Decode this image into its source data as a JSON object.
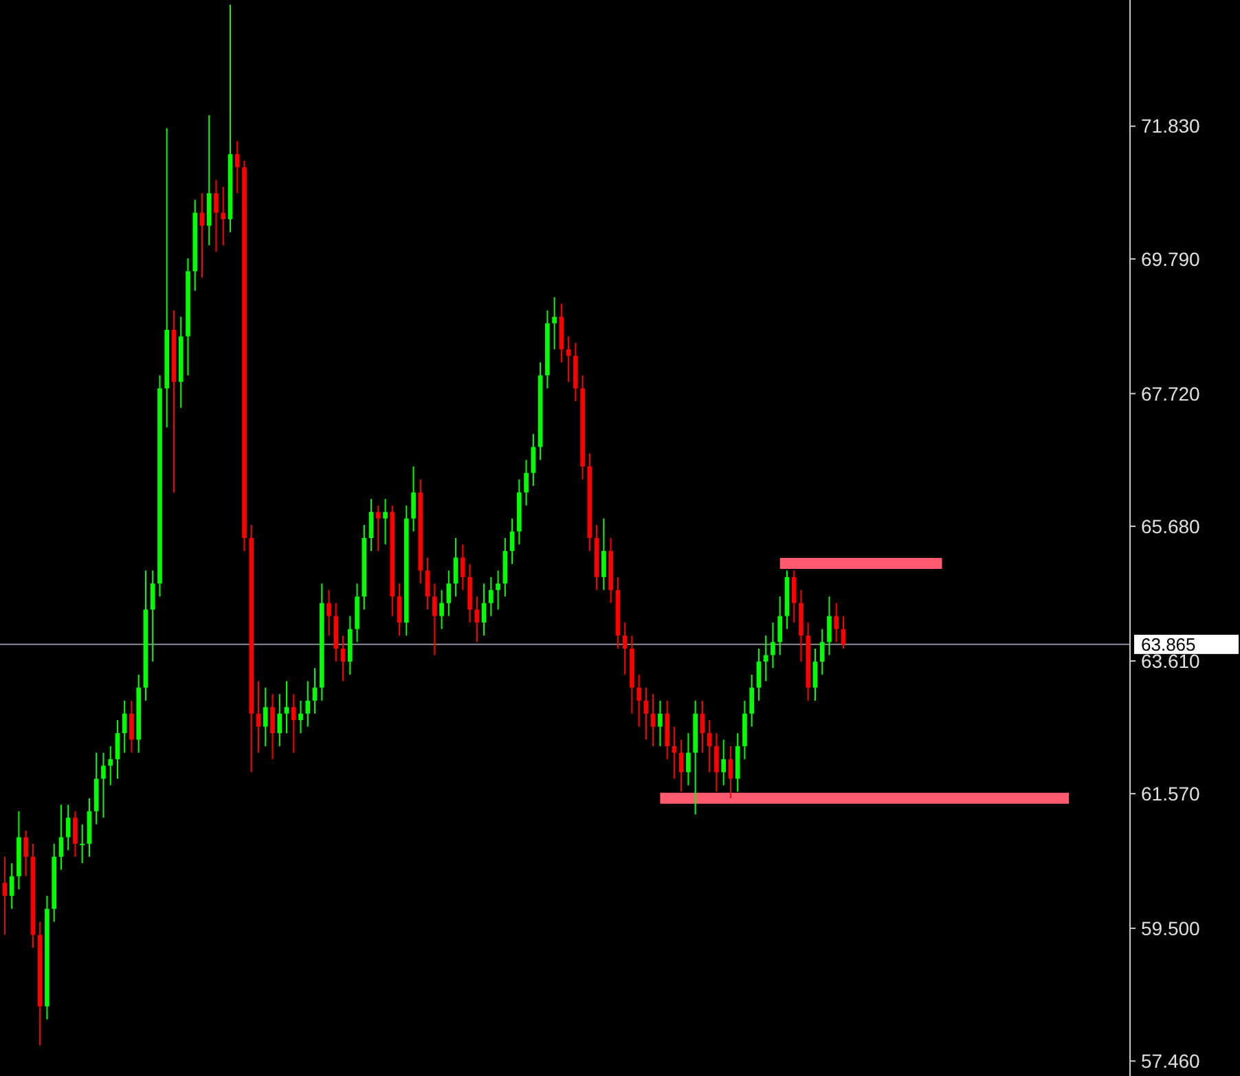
{
  "chart_data": {
    "type": "candlestick",
    "tick_labels": "y",
    "categories": [
      null,
      null,
      null,
      null,
      null,
      null,
      null,
      null,
      null,
      null,
      null,
      null,
      null,
      null,
      null,
      null,
      null,
      null,
      null,
      null,
      null,
      null,
      null,
      null,
      null,
      null,
      null,
      null,
      null,
      null,
      null,
      null,
      null,
      null,
      null,
      null,
      null,
      null,
      null,
      null,
      null,
      null,
      null,
      null,
      null,
      null,
      null,
      null,
      null,
      null,
      null,
      null,
      null,
      null,
      null,
      null,
      null,
      null,
      null,
      null,
      null,
      null,
      null,
      null,
      null,
      null,
      null,
      null,
      null,
      null,
      null,
      null,
      null,
      null,
      null,
      null,
      null,
      null,
      null,
      null,
      null,
      null,
      null,
      null,
      null,
      null,
      null,
      null,
      null,
      null,
      null,
      null,
      null,
      null,
      null,
      null,
      null,
      null,
      null,
      null,
      null,
      null,
      null,
      null,
      null,
      null,
      null,
      null,
      null,
      null,
      null,
      null,
      null,
      null,
      null,
      null,
      null,
      null,
      null,
      null,
      null,
      null,
      null,
      null,
      null,
      null,
      null,
      null,
      null,
      null,
      null,
      null,
      null,
      null,
      null,
      null,
      null,
      null,
      null,
      null,
      null,
      null,
      null,
      null,
      null,
      null,
      null,
      null,
      null,
      null,
      null,
      null,
      null,
      null,
      null,
      null,
      null,
      null,
      null,
      null
    ],
    "ohlc": [
      [
        60.2,
        60.6,
        59.4,
        60.0
      ],
      [
        60.0,
        60.5,
        59.8,
        60.3
      ],
      [
        60.3,
        61.3,
        60.1,
        60.9
      ],
      [
        60.9,
        61.0,
        60.3,
        60.6
      ],
      [
        60.6,
        60.8,
        59.2,
        59.4
      ],
      [
        59.4,
        59.6,
        57.7,
        58.3
      ],
      [
        58.3,
        60.0,
        58.1,
        59.8
      ],
      [
        59.8,
        60.8,
        59.6,
        60.6
      ],
      [
        60.6,
        61.4,
        60.4,
        60.9
      ],
      [
        60.9,
        61.4,
        60.7,
        61.2
      ],
      [
        61.2,
        61.3,
        60.6,
        60.8
      ],
      [
        60.8,
        61.1,
        60.5,
        60.8
      ],
      [
        60.8,
        61.5,
        60.6,
        61.3
      ],
      [
        61.3,
        62.2,
        61.1,
        61.8
      ],
      [
        61.8,
        62.2,
        61.2,
        62.0
      ],
      [
        62.0,
        62.3,
        61.7,
        62.1
      ],
      [
        62.1,
        62.7,
        61.8,
        62.5
      ],
      [
        62.5,
        63.0,
        62.2,
        62.8
      ],
      [
        62.8,
        63.0,
        62.2,
        62.4
      ],
      [
        62.4,
        63.4,
        62.2,
        63.2
      ],
      [
        63.2,
        65.0,
        63.0,
        64.4
      ],
      [
        64.4,
        65.0,
        63.6,
        64.8
      ],
      [
        64.8,
        68.0,
        64.6,
        67.8
      ],
      [
        67.8,
        71.8,
        67.2,
        68.7
      ],
      [
        68.7,
        69.0,
        66.2,
        67.9
      ],
      [
        67.9,
        68.9,
        67.5,
        68.6
      ],
      [
        68.6,
        69.8,
        68.0,
        69.6
      ],
      [
        69.6,
        70.7,
        69.3,
        70.5
      ],
      [
        70.5,
        70.8,
        69.5,
        70.3
      ],
      [
        70.3,
        72.0,
        70.0,
        70.8
      ],
      [
        70.8,
        71.0,
        69.9,
        70.5
      ],
      [
        70.5,
        70.9,
        70.0,
        70.4
      ],
      [
        70.4,
        73.7,
        70.2,
        71.4
      ],
      [
        71.4,
        71.6,
        70.8,
        71.2
      ],
      [
        71.2,
        71.3,
        65.3,
        65.5
      ],
      [
        65.5,
        65.7,
        61.9,
        62.8
      ],
      [
        62.8,
        63.3,
        62.2,
        62.6
      ],
      [
        62.6,
        63.2,
        62.3,
        62.9
      ],
      [
        62.9,
        63.1,
        62.1,
        62.5
      ],
      [
        62.5,
        63.1,
        62.3,
        62.8
      ],
      [
        62.8,
        63.3,
        62.5,
        62.9
      ],
      [
        62.9,
        63.1,
        62.2,
        62.7
      ],
      [
        62.7,
        63.0,
        62.5,
        62.8
      ],
      [
        62.8,
        63.3,
        62.6,
        63.0
      ],
      [
        63.0,
        63.5,
        62.8,
        63.2
      ],
      [
        63.2,
        64.8,
        63.0,
        64.5
      ],
      [
        64.5,
        64.7,
        64.0,
        64.3
      ],
      [
        64.3,
        64.5,
        63.6,
        63.8
      ],
      [
        63.8,
        64.0,
        63.3,
        63.6
      ],
      [
        63.6,
        64.3,
        63.4,
        64.1
      ],
      [
        64.1,
        64.8,
        63.9,
        64.6
      ],
      [
        64.6,
        65.7,
        64.4,
        65.5
      ],
      [
        65.5,
        66.1,
        65.3,
        65.9
      ],
      [
        65.9,
        66.0,
        65.3,
        65.8
      ],
      [
        65.8,
        66.1,
        65.4,
        65.9
      ],
      [
        65.9,
        66.0,
        64.3,
        64.6
      ],
      [
        64.6,
        64.8,
        64.0,
        64.2
      ],
      [
        64.2,
        66.0,
        64.0,
        65.8
      ],
      [
        65.8,
        66.6,
        65.6,
        66.2
      ],
      [
        66.2,
        66.4,
        64.8,
        65.0
      ],
      [
        65.0,
        65.2,
        64.4,
        64.6
      ],
      [
        64.6,
        64.8,
        63.7,
        64.3
      ],
      [
        64.3,
        64.7,
        64.1,
        64.5
      ],
      [
        64.5,
        65.0,
        64.3,
        64.8
      ],
      [
        64.8,
        65.5,
        64.6,
        65.2
      ],
      [
        65.2,
        65.4,
        64.7,
        64.9
      ],
      [
        64.9,
        65.1,
        64.2,
        64.4
      ],
      [
        64.4,
        64.6,
        63.9,
        64.2
      ],
      [
        64.2,
        64.8,
        64.0,
        64.5
      ],
      [
        64.5,
        64.9,
        64.3,
        64.7
      ],
      [
        64.7,
        65.0,
        64.4,
        64.8
      ],
      [
        64.8,
        65.5,
        64.6,
        65.3
      ],
      [
        65.3,
        65.8,
        65.1,
        65.6
      ],
      [
        65.6,
        66.4,
        65.4,
        66.2
      ],
      [
        66.2,
        66.7,
        66.0,
        66.5
      ],
      [
        66.5,
        67.1,
        66.3,
        66.9
      ],
      [
        66.9,
        68.2,
        66.7,
        68.0
      ],
      [
        68.0,
        69.0,
        67.8,
        68.8
      ],
      [
        68.8,
        69.2,
        68.4,
        68.9
      ],
      [
        68.9,
        69.1,
        68.2,
        68.4
      ],
      [
        68.4,
        68.6,
        67.9,
        68.3
      ],
      [
        68.3,
        68.5,
        67.6,
        67.8
      ],
      [
        67.8,
        68.0,
        66.4,
        66.6
      ],
      [
        66.6,
        66.8,
        65.3,
        65.5
      ],
      [
        65.5,
        65.7,
        64.7,
        64.9
      ],
      [
        64.9,
        65.8,
        64.7,
        65.3
      ],
      [
        65.3,
        65.5,
        64.5,
        64.7
      ],
      [
        64.7,
        64.9,
        63.8,
        64.0
      ],
      [
        64.0,
        64.2,
        63.4,
        63.8
      ],
      [
        63.8,
        64.0,
        62.8,
        63.2
      ],
      [
        63.2,
        63.4,
        62.6,
        63.0
      ],
      [
        63.0,
        63.2,
        62.4,
        62.8
      ],
      [
        62.8,
        63.1,
        62.3,
        62.6
      ],
      [
        62.6,
        63.0,
        62.3,
        62.8
      ],
      [
        62.8,
        63.0,
        62.1,
        62.3
      ],
      [
        62.3,
        62.6,
        61.8,
        62.2
      ],
      [
        62.2,
        62.4,
        61.6,
        61.9
      ],
      [
        61.9,
        62.5,
        61.7,
        62.2
      ],
      [
        62.2,
        63.0,
        61.25,
        62.8
      ],
      [
        62.8,
        63.0,
        62.2,
        62.5
      ],
      [
        62.5,
        62.7,
        61.9,
        62.3
      ],
      [
        62.3,
        62.5,
        61.6,
        61.9
      ],
      [
        61.9,
        62.4,
        61.7,
        62.1
      ],
      [
        62.1,
        62.3,
        61.5,
        61.8
      ],
      [
        61.8,
        62.5,
        61.6,
        62.3
      ],
      [
        62.3,
        63.0,
        62.1,
        62.8
      ],
      [
        62.8,
        63.4,
        62.6,
        63.2
      ],
      [
        63.2,
        63.8,
        63.0,
        63.6
      ],
      [
        63.6,
        64.0,
        63.3,
        63.7
      ],
      [
        63.7,
        64.2,
        63.5,
        63.9
      ],
      [
        63.9,
        64.6,
        63.7,
        64.3
      ],
      [
        64.3,
        65.0,
        64.1,
        64.9
      ],
      [
        64.9,
        65.0,
        64.2,
        64.5
      ],
      [
        64.5,
        64.7,
        63.6,
        64.0
      ],
      [
        64.0,
        64.2,
        63.0,
        63.2
      ],
      [
        63.2,
        63.8,
        63.0,
        63.6
      ],
      [
        63.6,
        64.1,
        63.4,
        63.9
      ],
      [
        63.9,
        64.6,
        63.7,
        64.3
      ],
      [
        64.3,
        64.5,
        63.9,
        64.1
      ],
      [
        64.1,
        64.3,
        63.8,
        63.865
      ],
      null,
      null,
      null,
      null,
      null,
      null,
      null,
      null,
      null,
      null,
      null,
      null,
      null,
      null,
      null,
      null,
      null,
      null,
      null,
      null,
      null,
      null,
      null,
      null,
      null,
      null,
      null,
      null,
      null,
      null,
      null,
      null,
      null,
      null,
      null,
      null,
      null,
      null,
      null,
      null
    ],
    "series": [
      {
        "type": "line",
        "color": "#ff5a6e",
        "values": [
          null,
          null,
          null,
          null,
          null,
          null,
          null,
          null,
          null,
          null,
          null,
          null,
          null,
          null,
          null,
          null,
          null,
          null,
          null,
          null,
          null,
          null,
          null,
          null,
          null,
          null,
          null,
          null,
          null,
          null,
          null,
          null,
          null,
          null,
          null,
          null,
          null,
          null,
          null,
          null,
          null,
          null,
          null,
          null,
          null,
          null,
          null,
          null,
          null,
          null,
          null,
          null,
          null,
          null,
          null,
          null,
          null,
          null,
          null,
          null,
          null,
          null,
          null,
          null,
          null,
          null,
          null,
          null,
          null,
          null,
          null,
          null,
          null,
          null,
          null,
          null,
          null,
          null,
          null,
          null,
          null,
          null,
          null,
          null,
          null,
          null,
          null,
          null,
          null,
          null,
          null,
          null,
          null,
          null,
          null,
          null,
          null,
          null,
          null,
          null,
          null,
          null,
          null,
          null,
          null,
          null,
          null,
          null,
          null,
          null,
          65.11,
          65.11,
          65.11,
          65.11,
          65.11,
          65.11,
          65.11,
          65.11,
          65.11,
          65.11,
          65.11,
          65.11,
          65.11,
          65.11,
          65.11,
          65.11,
          65.11,
          65.11,
          65.11,
          65.11,
          65.11,
          65.11,
          65.11,
          65.11,
          null,
          null,
          null,
          null,
          null,
          null,
          null,
          null,
          null,
          null,
          null,
          null,
          null,
          null,
          null,
          null,
          null,
          null,
          null,
          null,
          null,
          null,
          null,
          null,
          null,
          null
        ]
      },
      {
        "type": "line",
        "color": "#ff5a6e",
        "values": [
          null,
          null,
          null,
          null,
          null,
          null,
          null,
          null,
          null,
          null,
          null,
          null,
          null,
          null,
          null,
          null,
          null,
          null,
          null,
          null,
          null,
          null,
          null,
          null,
          null,
          null,
          null,
          null,
          null,
          null,
          null,
          null,
          null,
          null,
          null,
          null,
          null,
          null,
          null,
          null,
          null,
          null,
          null,
          null,
          null,
          null,
          null,
          null,
          null,
          null,
          null,
          null,
          null,
          null,
          null,
          null,
          null,
          null,
          null,
          null,
          null,
          null,
          null,
          null,
          null,
          null,
          null,
          null,
          null,
          null,
          null,
          null,
          null,
          null,
          null,
          null,
          null,
          null,
          null,
          null,
          null,
          null,
          null,
          null,
          null,
          null,
          null,
          null,
          null,
          null,
          null,
          null,
          null,
          61.5,
          61.5,
          61.5,
          61.5,
          61.5,
          61.5,
          61.5,
          61.5,
          61.5,
          61.5,
          61.5,
          61.5,
          61.5,
          61.5,
          61.5,
          61.5,
          61.5,
          61.5,
          61.5,
          61.5,
          61.5,
          61.5,
          61.5,
          61.5,
          61.5,
          61.5,
          61.5,
          61.5,
          61.5,
          61.5,
          61.5,
          61.5,
          61.5,
          61.5,
          61.5,
          61.5,
          61.5,
          61.5,
          61.5,
          61.5,
          61.5,
          61.5,
          61.5,
          61.5,
          61.5,
          61.5,
          61.5,
          61.5,
          61.5,
          61.5,
          61.5,
          61.5,
          61.5,
          61.5,
          61.5,
          61.5,
          61.5,
          61.5,
          61.5,
          null,
          null,
          null,
          null,
          null,
          null,
          null,
          null
        ]
      }
    ],
    "ylim": [
      57.23,
      73.77
    ],
    "yticks": [
      {
        "value": 57.46,
        "label": "57.460"
      },
      {
        "value": 59.5,
        "label": "59.500"
      },
      {
        "value": 61.57,
        "label": "61.570"
      },
      {
        "value": 63.61,
        "label": "63.610"
      },
      {
        "value": 65.68,
        "label": "65.680"
      },
      {
        "value": 67.72,
        "label": "67.720"
      },
      {
        "value": 69.79,
        "label": "69.790"
      },
      {
        "value": 71.83,
        "label": "71.830"
      }
    ],
    "ref_lines": [
      {
        "axis": "y",
        "value": 63.865,
        "label": "63.865",
        "color": "#8a9099"
      }
    ]
  }
}
